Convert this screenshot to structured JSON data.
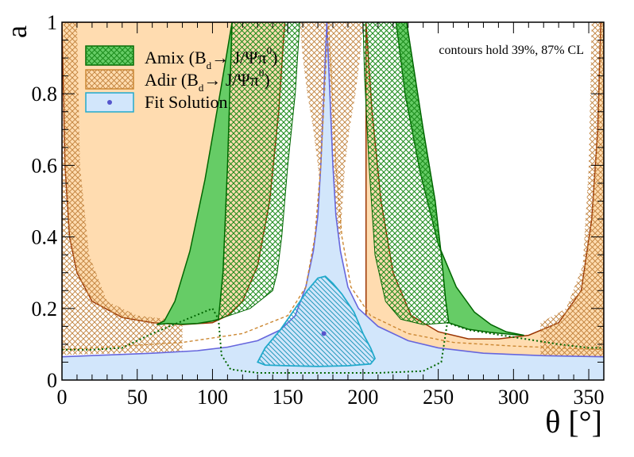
{
  "chart_data": {
    "type": "area",
    "xlabel": "θ [°]",
    "ylabel": "a",
    "xlim": [
      0,
      360
    ],
    "ylim": [
      0,
      1
    ],
    "xticks": [
      "0",
      "50",
      "100",
      "150",
      "200",
      "250",
      "300",
      "350"
    ],
    "yticks": [
      "0",
      "0.2",
      "0.4",
      "0.6",
      "0.8",
      "1"
    ],
    "annotation": "contours hold 39%, 87% CL",
    "legend_placement": "top-left",
    "legend": [
      {
        "key": "amix",
        "text": "Amix (B",
        "sub": "d",
        "tail": "→ J/Ψπ",
        "sup": "0",
        "close": ")"
      },
      {
        "key": "adir",
        "text": "Adir (B",
        "sub": "d",
        "tail": "→ J/Ψπ",
        "sup": "0",
        "close": ")"
      },
      {
        "key": "fit",
        "text": "Fit Solution"
      }
    ],
    "colors": {
      "amix_87": "#66cc66",
      "amix_39_hatch": "#1a8a1a",
      "amix_line": "#006600",
      "adir_87": "#ffdcb0",
      "adir_39_hatch": "#c0803a",
      "adir_line": "#993300",
      "adir_dash": "#cc8833",
      "fit_87": "#d2e6fb",
      "fit_line": "#6666dd",
      "fit_39": "#55c8e0",
      "fit_39_line": "#22aacc",
      "amix_dot": "#006600"
    },
    "series": [
      {
        "name": "Amix (Bd → J/Ψπ0)",
        "level": "87% CL",
        "bands": [
          {
            "upper": [
              [
                63,
                0.155
              ],
              [
                68,
                0.165
              ],
              [
                75,
                0.22
              ],
              [
                85,
                0.36
              ],
              [
                95,
                0.56
              ],
              [
                105,
                0.8
              ],
              [
                113,
                1.0
              ]
            ],
            "lower": [
              [
                63,
                0.155
              ],
              [
                70,
                0.158
              ],
              [
                80,
                0.156
              ],
              [
                90,
                0.158
              ],
              [
                100,
                0.165
              ],
              [
                104,
                0.17
              ],
              [
                107,
                0.3
              ],
              [
                110,
                0.6
              ],
              [
                113,
                1.0
              ]
            ]
          },
          {
            "upper": [
              [
                222,
                1.0
              ],
              [
                228,
                0.8
              ],
              [
                238,
                0.58
              ],
              [
                250,
                0.38
              ],
              [
                262,
                0.26
              ],
              [
                274,
                0.19
              ],
              [
                285,
                0.155
              ],
              [
                295,
                0.135
              ],
              [
                307,
                0.125
              ]
            ],
            "lower": [
              [
                229,
                1.0
              ],
              [
                240,
                0.7
              ],
              [
                248,
                0.5
              ],
              [
                252,
                0.35
              ],
              [
                255,
                0.22
              ],
              [
                257,
                0.16
              ],
              [
                270,
                0.142
              ],
              [
                285,
                0.133
              ],
              [
                300,
                0.127
              ],
              [
                307,
                0.125
              ]
            ]
          }
        ]
      },
      {
        "name": "Amix (Bd → J/Ψπ0)",
        "level": "39% CL",
        "bands": [
          {
            "upper": [
              [
                104,
                0.17
              ],
              [
                107,
                0.3
              ],
              [
                110,
                0.6
              ],
              [
                113,
                1.0
              ]
            ],
            "lower": [
              [
                104,
                0.17
              ],
              [
                107,
                0.3
              ],
              [
                110,
                0.6
              ],
              [
                113,
                1.0
              ]
            ]
          },
          {
            "upper": [
              [
                229,
                1.0
              ],
              [
                240,
                0.7
              ],
              [
                248,
                0.5
              ],
              [
                252,
                0.35
              ],
              [
                255,
                0.22
              ],
              [
                257,
                0.16
              ]
            ],
            "lower": [
              [
                229,
                1.0
              ],
              [
                240,
                0.7
              ],
              [
                248,
                0.5
              ],
              [
                252,
                0.35
              ],
              [
                255,
                0.22
              ],
              [
                257,
                0.16
              ]
            ]
          }
        ]
      },
      {
        "name": "Adir (Bd → J/Ψπ0)",
        "level": "87% CL",
        "upper_left": [
          [
            0,
            1.0
          ],
          [
            2,
            0.6
          ],
          [
            5,
            0.4
          ],
          [
            10,
            0.3
          ],
          [
            20,
            0.22
          ],
          [
            40,
            0.175
          ],
          [
            60,
            0.16
          ],
          [
            80,
            0.155
          ],
          [
            100,
            0.16
          ],
          [
            110,
            0.18
          ],
          [
            120,
            0.22
          ],
          [
            130,
            0.32
          ],
          [
            138,
            0.5
          ],
          [
            144,
            0.75
          ],
          [
            148,
            1.0
          ]
        ],
        "upper_right": [
          [
            202,
            1.0
          ],
          [
            206,
            0.75
          ],
          [
            212,
            0.5
          ],
          [
            220,
            0.3
          ],
          [
            232,
            0.18
          ],
          [
            250,
            0.135
          ],
          [
            270,
            0.115
          ],
          [
            290,
            0.115
          ],
          [
            310,
            0.125
          ],
          [
            330,
            0.16
          ],
          [
            345,
            0.25
          ],
          [
            352,
            0.45
          ],
          [
            356,
            0.7
          ],
          [
            358,
            1.0
          ]
        ],
        "lower": [
          [
            0,
            0.07
          ],
          [
            360,
            0.06
          ]
        ]
      },
      {
        "name": "Adir (Bd → J/Ψπ0)",
        "level": "39% CL",
        "left_band": [
          [
            0,
            0.07
          ],
          [
            1,
            1.0
          ],
          [
            10,
            1.0
          ],
          [
            12,
            0.6
          ],
          [
            18,
            0.35
          ],
          [
            30,
            0.22
          ],
          [
            50,
            0.18
          ],
          [
            70,
            0.17
          ],
          [
            80,
            0.17
          ]
        ],
        "right_band": [
          [
            318,
            0.16
          ],
          [
            335,
            0.2
          ],
          [
            346,
            0.32
          ],
          [
            350,
            0.6
          ],
          [
            352,
            1.0
          ],
          [
            360,
            1.0
          ],
          [
            360,
            0.06
          ]
        ],
        "center_band": [
          [
            158,
            1.0
          ],
          [
            160,
            0.9
          ],
          [
            163,
            0.8
          ],
          [
            167,
            0.7
          ],
          [
            170,
            0.6
          ],
          [
            175,
            0.4
          ],
          [
            180,
            0.35
          ],
          [
            185,
            0.4
          ],
          [
            188,
            0.6
          ],
          [
            191,
            0.7
          ],
          [
            195,
            0.8
          ],
          [
            198,
            0.9
          ],
          [
            200,
            1.0
          ]
        ]
      },
      {
        "name": "Fit Solution",
        "level": "87% CL",
        "boundary": [
          [
            0,
            0.065
          ],
          [
            30,
            0.07
          ],
          [
            60,
            0.075
          ],
          [
            90,
            0.082
          ],
          [
            110,
            0.092
          ],
          [
            130,
            0.11
          ],
          [
            145,
            0.14
          ],
          [
            155,
            0.18
          ],
          [
            162,
            0.26
          ],
          [
            167,
            0.36
          ],
          [
            170,
            0.46
          ],
          [
            172,
            0.6
          ],
          [
            174,
            0.8
          ],
          [
            176,
            1.0
          ],
          [
            178,
            0.8
          ],
          [
            180,
            0.6
          ],
          [
            182,
            0.46
          ],
          [
            185,
            0.36
          ],
          [
            190,
            0.26
          ],
          [
            197,
            0.2
          ],
          [
            210,
            0.15
          ],
          [
            230,
            0.11
          ],
          [
            250,
            0.09
          ],
          [
            280,
            0.075
          ],
          [
            320,
            0.068
          ],
          [
            360,
            0.065
          ]
        ],
        "base": 0
      },
      {
        "name": "Fit Solution",
        "level": "39% CL",
        "boundary": [
          [
            130,
            0.05
          ],
          [
            135,
            0.09
          ],
          [
            145,
            0.14
          ],
          [
            155,
            0.2
          ],
          [
            163,
            0.25
          ],
          [
            170,
            0.285
          ],
          [
            175,
            0.29
          ],
          [
            180,
            0.27
          ],
          [
            186,
            0.24
          ],
          [
            194,
            0.19
          ],
          [
            200,
            0.13
          ],
          [
            205,
            0.09
          ],
          [
            208,
            0.06
          ],
          [
            205,
            0.045
          ],
          [
            190,
            0.04
          ],
          [
            170,
            0.038
          ],
          [
            150,
            0.04
          ],
          [
            135,
            0.042
          ],
          [
            130,
            0.05
          ]
        ]
      },
      {
        "name": "Fit Solution",
        "point": [
          174,
          0.13
        ]
      }
    ],
    "dashed_contours": {
      "adir_39": [
        [
          0,
          0.085
        ],
        [
          40,
          0.095
        ],
        [
          80,
          0.105
        ],
        [
          120,
          0.13
        ],
        [
          150,
          0.18
        ],
        [
          162,
          0.26
        ],
        [
          168,
          0.4
        ],
        [
          172,
          0.6
        ],
        [
          175,
          0.85
        ],
        [
          177,
          1.0
        ],
        [
          179,
          0.85
        ],
        [
          182,
          0.6
        ],
        [
          186,
          0.4
        ],
        [
          192,
          0.26
        ],
        [
          205,
          0.18
        ],
        [
          230,
          0.13
        ],
        [
          260,
          0.105
        ],
        [
          300,
          0.095
        ],
        [
          360,
          0.085
        ]
      ],
      "amix_39_lower": [
        [
          0,
          0.085
        ],
        [
          20,
          0.085
        ],
        [
          40,
          0.09
        ],
        [
          60,
          0.13
        ],
        [
          80,
          0.165
        ],
        [
          100,
          0.2
        ],
        [
          104,
          0.17
        ],
        [
          106,
          0.07
        ],
        [
          112,
          0.03
        ],
        [
          130,
          0.02
        ],
        [
          170,
          0.02
        ],
        [
          210,
          0.02
        ],
        [
          240,
          0.025
        ],
        [
          252,
          0.05
        ],
        [
          256,
          0.16
        ],
        [
          270,
          0.14
        ],
        [
          300,
          0.12
        ],
        [
          330,
          0.1
        ],
        [
          350,
          0.09
        ],
        [
          360,
          0.09
        ]
      ]
    }
  }
}
